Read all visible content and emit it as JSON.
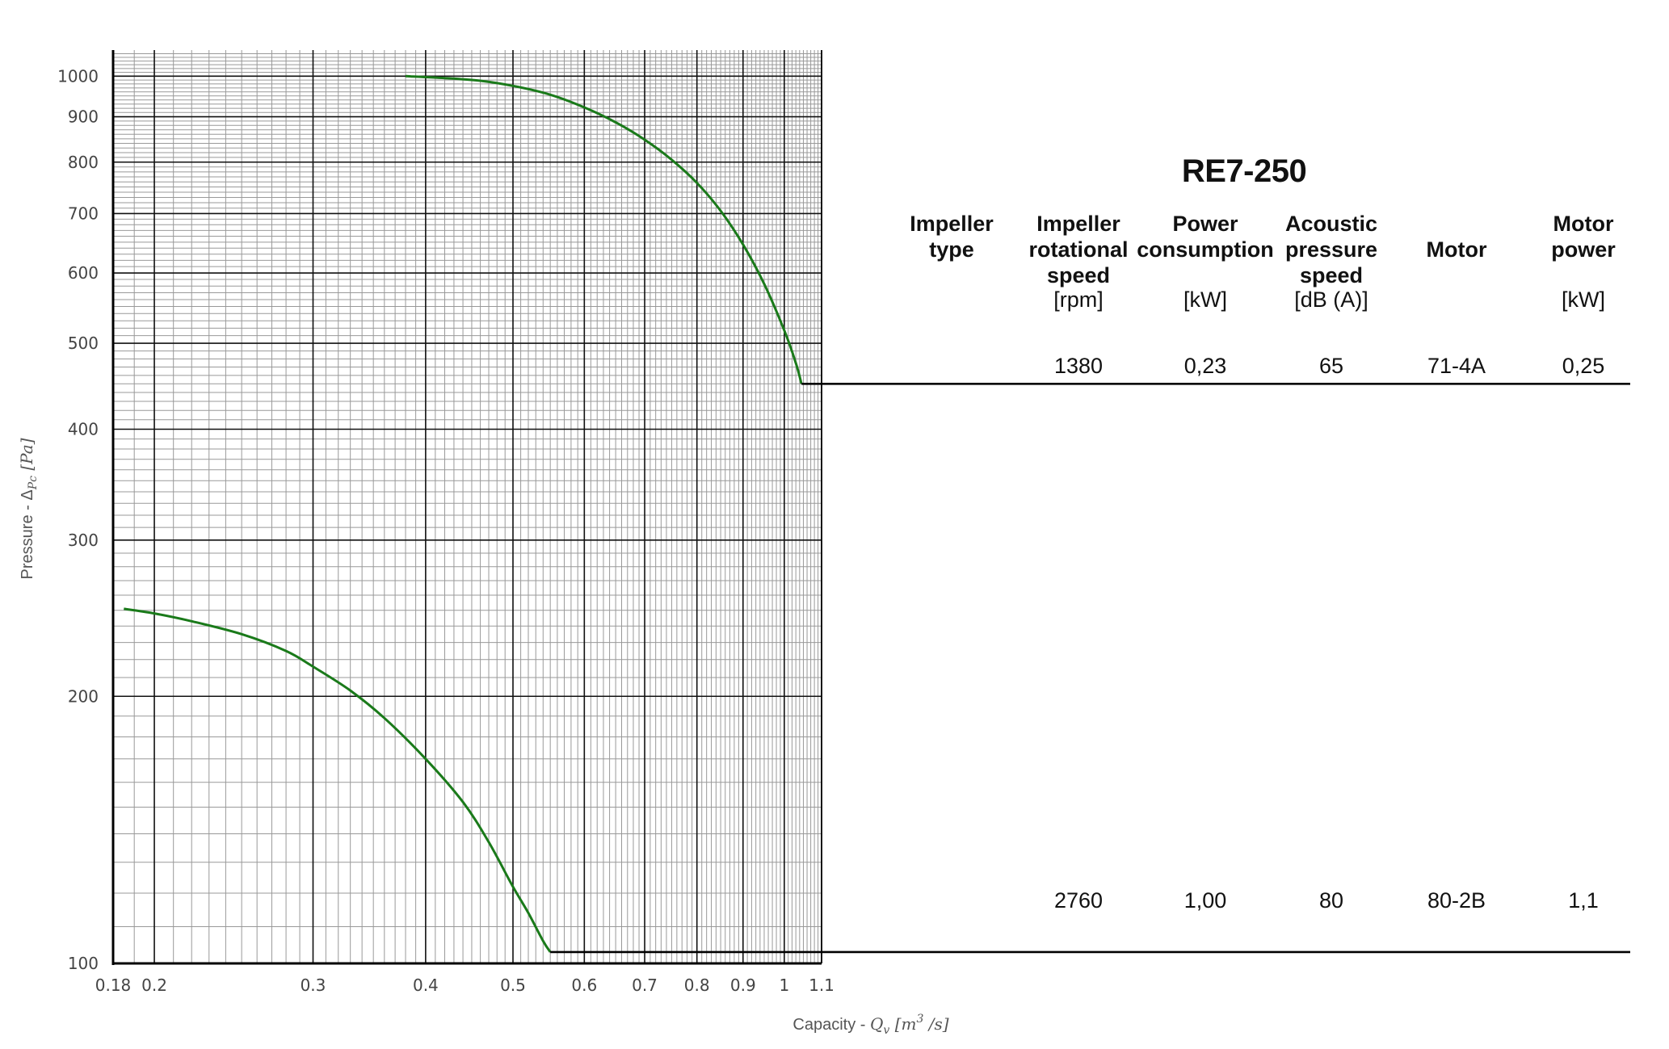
{
  "chart_data": {
    "type": "line",
    "x_scale": "log",
    "y_scale": "log",
    "xlim": [
      0.18,
      1.1
    ],
    "ylim": [
      100,
      1070
    ],
    "x_ticks": [
      0.18,
      0.2,
      0.3,
      0.4,
      0.5,
      0.6,
      0.7,
      0.8,
      0.9,
      1,
      1.1
    ],
    "x_tick_labels": [
      "0.18",
      "0.2",
      "0.3",
      "0.4",
      "0.5",
      "0.6",
      "0.7",
      "0.8",
      "0.9",
      "1",
      "1.1"
    ],
    "y_ticks": [
      100,
      200,
      300,
      400,
      500,
      600,
      700,
      800,
      900,
      1000
    ],
    "y_tick_labels": [
      "100",
      "200",
      "300",
      "400",
      "500",
      "600",
      "700",
      "800",
      "900",
      "1000"
    ],
    "grid": true,
    "xlabel": "Capacity - Q_v [m³ /s]",
    "ylabel": "Pressure - Δ_Pc [Pa]",
    "series": [
      {
        "x": [
          0.38,
          0.42,
          0.46,
          0.5,
          0.55,
          0.6,
          0.65,
          0.7,
          0.75,
          0.8,
          0.85,
          0.9,
          0.95,
          1.0,
          1.03,
          1.045
        ],
        "y": [
          1000,
          995,
          988,
          975,
          953,
          922,
          887,
          848,
          805,
          758,
          705,
          646,
          583,
          517,
          475,
          450
        ],
        "end_y": 450,
        "color": "#1a7a1a"
      },
      {
        "x": [
          0.185,
          0.2,
          0.22,
          0.25,
          0.28,
          0.3,
          0.33,
          0.36,
          0.4,
          0.44,
          0.47,
          0.5,
          0.52,
          0.54,
          0.55
        ],
        "y": [
          251,
          248,
          243,
          235,
          225,
          216,
          203,
          189,
          170,
          152,
          137,
          122,
          114,
          106,
          103
        ],
        "end_y": 103,
        "color": "#1a7a1a"
      }
    ]
  },
  "table": {
    "title": "RE7-250",
    "columns": [
      {
        "head": [
          "Impeller",
          "type"
        ],
        "unit": ""
      },
      {
        "head": [
          "Impeller",
          "rotational",
          "speed"
        ],
        "unit": "[rpm]"
      },
      {
        "head": [
          "Power",
          "consumption"
        ],
        "unit": "[kW]"
      },
      {
        "head": [
          "Acoustic",
          "pressure",
          "speed"
        ],
        "unit": "[dB (A)]"
      },
      {
        "head": [
          "Motor"
        ],
        "unit": ""
      },
      {
        "head": [
          "Motor",
          "power"
        ],
        "unit": "[kW]"
      }
    ],
    "rows": [
      [
        "",
        "1380",
        "0,23",
        "65",
        "71-4A",
        "0,25"
      ],
      [
        "",
        "2760",
        "1,00",
        "80",
        "80-2B",
        "1,1"
      ]
    ]
  },
  "colors": {
    "curve": "#1a7a1a",
    "grid_major": "#111111",
    "grid_minor": "#999999"
  }
}
